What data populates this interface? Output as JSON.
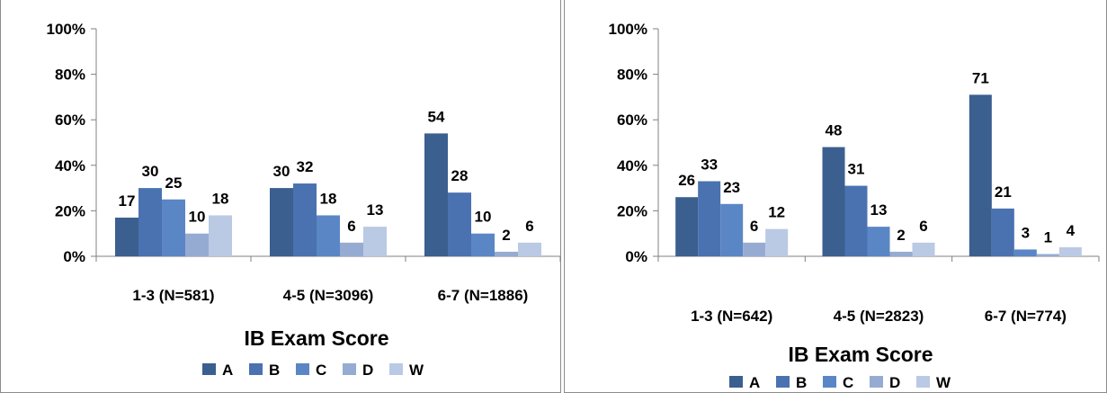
{
  "chart_data": [
    {
      "type": "bar",
      "title": "",
      "xlabel": "IB Exam Score",
      "ylabel": "",
      "ylim": [
        0,
        100
      ],
      "yticks": [
        "0%",
        "20%",
        "40%",
        "60%",
        "80%",
        "100%"
      ],
      "categories": [
        "1-3 (N=581)",
        "4-5 (N=3096)",
        "6-7 (N=1886)"
      ],
      "series": [
        {
          "name": "A",
          "color": "#3b5f8f",
          "values": [
            17,
            30,
            54
          ]
        },
        {
          "name": "B",
          "color": "#4a72b0",
          "values": [
            30,
            32,
            28
          ]
        },
        {
          "name": "C",
          "color": "#5b86c6",
          "values": [
            25,
            18,
            10
          ]
        },
        {
          "name": "D",
          "color": "#96abd2",
          "values": [
            10,
            6,
            2
          ]
        },
        {
          "name": "W",
          "color": "#bac9e4",
          "values": [
            18,
            13,
            6
          ]
        }
      ],
      "legend_position": "bottom",
      "grid": false
    },
    {
      "type": "bar",
      "title": "",
      "xlabel": "IB Exam Score",
      "ylabel": "",
      "ylim": [
        0,
        100
      ],
      "yticks": [
        "0%",
        "20%",
        "40%",
        "60%",
        "80%",
        "100%"
      ],
      "categories": [
        "1-3 (N=642)",
        "4-5 (N=2823)",
        "6-7 (N=774)"
      ],
      "series": [
        {
          "name": "A",
          "color": "#3b5f8f",
          "values": [
            26,
            48,
            71
          ]
        },
        {
          "name": "B",
          "color": "#4a72b0",
          "values": [
            33,
            31,
            21
          ]
        },
        {
          "name": "C",
          "color": "#5b86c6",
          "values": [
            23,
            13,
            3
          ]
        },
        {
          "name": "D",
          "color": "#96abd2",
          "values": [
            6,
            2,
            1
          ]
        },
        {
          "name": "W",
          "color": "#bac9e4",
          "values": [
            12,
            6,
            4
          ]
        }
      ],
      "legend_position": "bottom",
      "grid": false
    }
  ]
}
